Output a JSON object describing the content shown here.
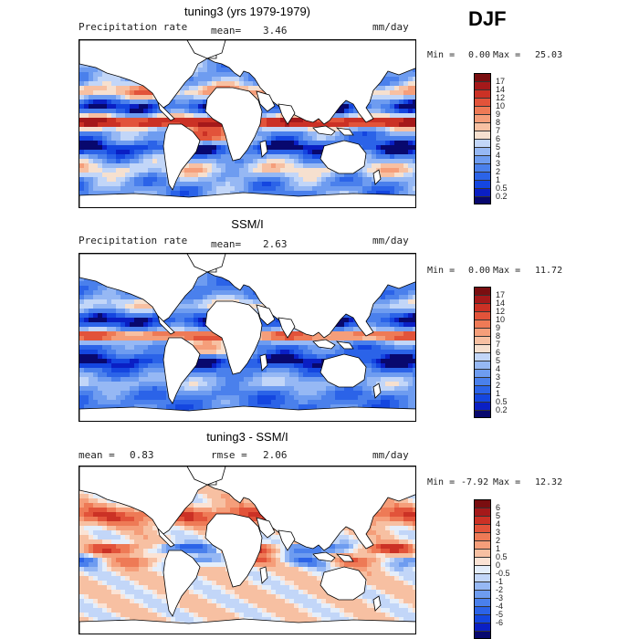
{
  "season": "DJF",
  "palette_pos": [
    "#08086e",
    "#0a1fc4",
    "#1446e0",
    "#2b63e8",
    "#4a80ec",
    "#6e9cf0",
    "#96b8f4",
    "#c2d6f8",
    "#f6e0cf",
    "#f7c0a2",
    "#f59e7a",
    "#ee7a56",
    "#e2533a",
    "#cb3125",
    "#a5191a",
    "#7a0e10"
  ],
  "palette_div": [
    "#08086e",
    "#0a1fc4",
    "#1446e0",
    "#2b63e8",
    "#4a80ec",
    "#6e9cf0",
    "#96b8f4",
    "#c2d6f8",
    "#e4eefb",
    "#fbe3d5",
    "#f7c0a2",
    "#f59e7a",
    "#ee7a56",
    "#e2533a",
    "#cb3125",
    "#a5191a",
    "#7a0e10"
  ],
  "chart_data": [
    {
      "type": "heatmap",
      "title": "tuning3 (yrs 1979-1979)",
      "variable": "Precipitation rate",
      "units": "mm/day",
      "mean_label": "mean=",
      "mean": "3.46",
      "min": "0.00",
      "max": "25.03",
      "min_label": "Min =",
      "max_label": "Max =",
      "colorbar_ticks": [
        "17",
        "14",
        "12",
        "10",
        "9",
        "8",
        "7",
        "6",
        "5",
        "4",
        "3",
        "2",
        "1",
        "0.5",
        "0.2"
      ]
    },
    {
      "type": "heatmap",
      "title": "SSM/I",
      "variable": "Precipitation rate",
      "units": "mm/day",
      "mean_label": "mean=",
      "mean": "2.63",
      "min": "0.00",
      "max": "11.72",
      "min_label": "Min =",
      "max_label": "Max =",
      "colorbar_ticks": [
        "17",
        "14",
        "12",
        "10",
        "9",
        "8",
        "7",
        "6",
        "5",
        "4",
        "3",
        "2",
        "1",
        "0.5",
        "0.2"
      ]
    },
    {
      "type": "heatmap",
      "title": "tuning3 - SSM/I",
      "units": "mm/day",
      "mean_label": "mean =",
      "mean": "0.83",
      "rmse_label": "rmse =",
      "rmse": "2.06",
      "min": "-7.92",
      "max": "12.32",
      "min_label": "Min =",
      "max_label": "Max =",
      "colorbar_ticks": [
        "6",
        "5",
        "4",
        "3",
        "2",
        "1",
        "0.5",
        "0",
        "-0.5",
        "-1",
        "-2",
        "-3",
        "-4",
        "-5",
        "-6"
      ]
    }
  ]
}
